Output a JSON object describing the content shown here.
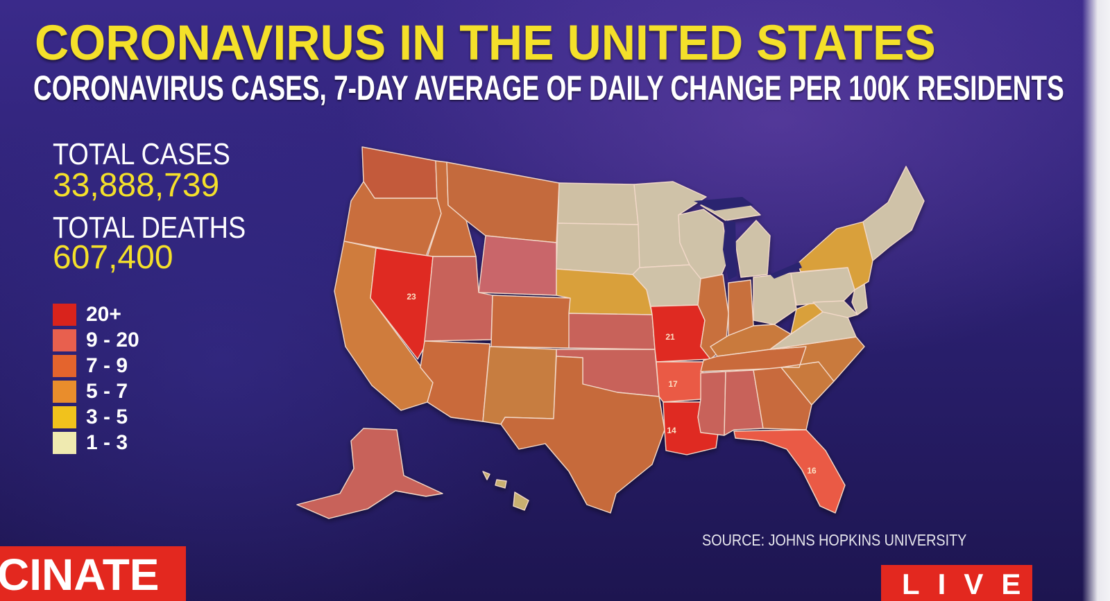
{
  "header": {
    "title": "CORONAVIRUS IN THE UNITED STATES",
    "subtitle": "CORONAVIRUS CASES, 7-DAY AVERAGE OF DAILY CHANGE PER 100K RESIDENTS"
  },
  "stats": {
    "cases_label": "TOTAL CASES",
    "cases_value": "33,888,739",
    "deaths_label": "TOTAL DEATHS",
    "deaths_value": "607,400"
  },
  "legend": [
    {
      "label": "20+",
      "color": "#d9231c"
    },
    {
      "label": "9 - 20",
      "color": "#e8604e"
    },
    {
      "label": "7 - 9",
      "color": "#e4642d"
    },
    {
      "label": "5 - 7",
      "color": "#e98d2c"
    },
    {
      "label": "3 - 5",
      "color": "#f1c21c"
    },
    {
      "label": "1 - 3",
      "color": "#efeab0"
    }
  ],
  "map": {
    "state_labels": {
      "nevada": "23",
      "missouri": "21",
      "arkansas": "17",
      "louisiana": "14",
      "florida": "16"
    }
  },
  "source": "SOURCE: JOHNS HOPKINS UNIVERSITY",
  "ticker": "CINATE",
  "live": "LIVE"
}
